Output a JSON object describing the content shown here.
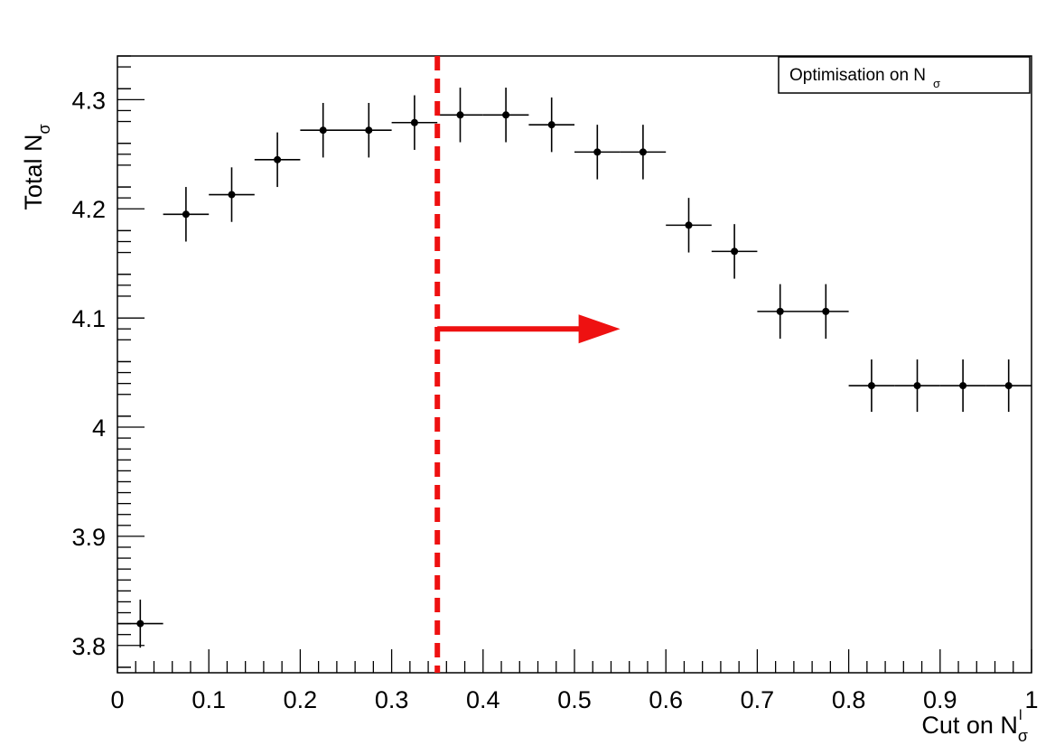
{
  "chart_data": {
    "type": "scatter",
    "title": "",
    "xlabel": {
      "main": "Cut on N",
      "sub": "σ",
      "sup": "l"
    },
    "ylabel": {
      "main": "Total N",
      "sub": "σ"
    },
    "xlim": [
      0,
      1
    ],
    "ylim": [
      3.775,
      4.34
    ],
    "x_ticks": [
      0,
      0.1,
      0.2,
      0.3,
      0.4,
      0.5,
      0.6,
      0.7,
      0.8,
      0.9,
      1
    ],
    "x_tick_labels": [
      "0",
      "0.1",
      "0.2",
      "0.3",
      "0.4",
      "0.5",
      "0.6",
      "0.7",
      "0.8",
      "0.9",
      "1"
    ],
    "y_ticks": [
      3.8,
      3.9,
      4.0,
      4.1,
      4.2,
      4.3
    ],
    "y_tick_labels": [
      "3.8",
      "3.9",
      "4",
      "4.1",
      "4.2",
      "4.3"
    ],
    "grid": false,
    "legend": {
      "position": "top-right",
      "main": "Optimisation on N",
      "sub": "σ"
    },
    "points": [
      {
        "x": 0.025,
        "y": 3.82,
        "xerr": 0.025,
        "yerr": 0.022
      },
      {
        "x": 0.075,
        "y": 4.195,
        "xerr": 0.025,
        "yerr": 0.025
      },
      {
        "x": 0.125,
        "y": 4.213,
        "xerr": 0.025,
        "yerr": 0.025
      },
      {
        "x": 0.175,
        "y": 4.245,
        "xerr": 0.025,
        "yerr": 0.025
      },
      {
        "x": 0.225,
        "y": 4.272,
        "xerr": 0.025,
        "yerr": 0.025
      },
      {
        "x": 0.275,
        "y": 4.272,
        "xerr": 0.025,
        "yerr": 0.025
      },
      {
        "x": 0.325,
        "y": 4.279,
        "xerr": 0.025,
        "yerr": 0.025
      },
      {
        "x": 0.375,
        "y": 4.286,
        "xerr": 0.025,
        "yerr": 0.025
      },
      {
        "x": 0.425,
        "y": 4.286,
        "xerr": 0.025,
        "yerr": 0.025
      },
      {
        "x": 0.475,
        "y": 4.277,
        "xerr": 0.025,
        "yerr": 0.025
      },
      {
        "x": 0.525,
        "y": 4.252,
        "xerr": 0.025,
        "yerr": 0.025
      },
      {
        "x": 0.575,
        "y": 4.252,
        "xerr": 0.025,
        "yerr": 0.025
      },
      {
        "x": 0.625,
        "y": 4.185,
        "xerr": 0.025,
        "yerr": 0.025
      },
      {
        "x": 0.675,
        "y": 4.161,
        "xerr": 0.025,
        "yerr": 0.025
      },
      {
        "x": 0.725,
        "y": 4.106,
        "xerr": 0.025,
        "yerr": 0.025
      },
      {
        "x": 0.775,
        "y": 4.106,
        "xerr": 0.025,
        "yerr": 0.025
      },
      {
        "x": 0.825,
        "y": 4.038,
        "xerr": 0.025,
        "yerr": 0.024
      },
      {
        "x": 0.875,
        "y": 4.038,
        "xerr": 0.025,
        "yerr": 0.024
      },
      {
        "x": 0.925,
        "y": 4.038,
        "xerr": 0.025,
        "yerr": 0.024
      },
      {
        "x": 0.975,
        "y": 4.038,
        "xerr": 0.025,
        "yerr": 0.024
      }
    ],
    "cut_line": {
      "x": 0.35,
      "color": "#ee1111"
    },
    "arrow": {
      "x_start": 0.35,
      "x_end": 0.55,
      "y": 4.09,
      "color": "#ee1111"
    }
  }
}
